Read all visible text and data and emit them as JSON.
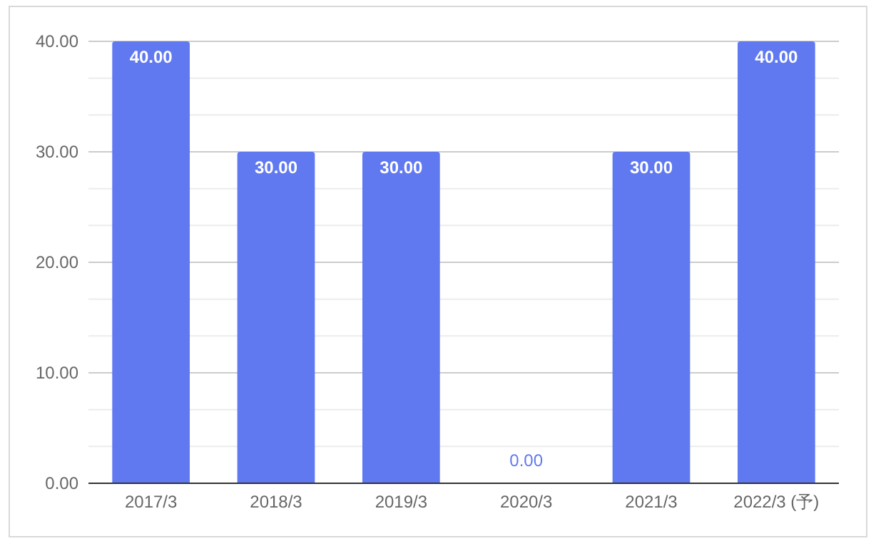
{
  "chart_data": {
    "type": "bar",
    "categories": [
      "2017/3",
      "2018/3",
      "2019/3",
      "2020/3",
      "2021/3",
      "2022/3 (予)"
    ],
    "values": [
      40.0,
      30.0,
      30.0,
      0.0,
      30.0,
      40.0
    ],
    "color": "#6079f1",
    "value_labels": [
      "40.00",
      "30.00",
      "30.00",
      "0.00",
      "30.00",
      "40.00"
    ],
    "ylim": [
      0,
      40
    ],
    "yticks": [
      {
        "value": 0,
        "label": "0.00"
      },
      {
        "value": 10,
        "label": "10.00"
      },
      {
        "value": 20,
        "label": "20.00"
      },
      {
        "value": 30,
        "label": "30.00"
      },
      {
        "value": 40,
        "label": "40.00"
      }
    ],
    "grid": "y"
  }
}
